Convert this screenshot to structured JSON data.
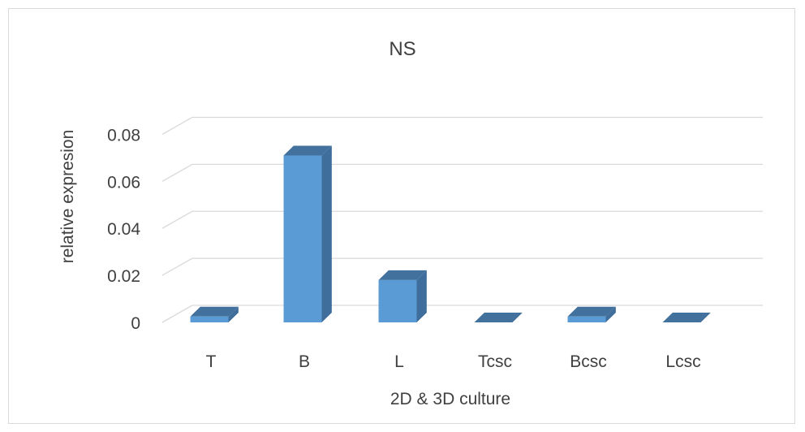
{
  "chart_data": {
    "type": "bar",
    "title": "NS",
    "xlabel": "2D & 3D culture",
    "ylabel": "relative expresion",
    "categories": [
      "T",
      "B",
      "L",
      "Tcsc",
      "Bcsc",
      "Lcsc"
    ],
    "values": [
      0.0025,
      0.071,
      0.018,
      0.0,
      0.0025,
      0.0
    ],
    "ylim": [
      0,
      0.08
    ],
    "yticks": [
      "0",
      "0.02",
      "0.04",
      "0.06",
      "0.08"
    ],
    "grid": true,
    "legend": "none",
    "colors": {
      "bar_front": "#5b9bd5",
      "bar_side": "#3f6d9c",
      "bar_top": "#41719c",
      "grid": "#d9d9d9"
    }
  }
}
